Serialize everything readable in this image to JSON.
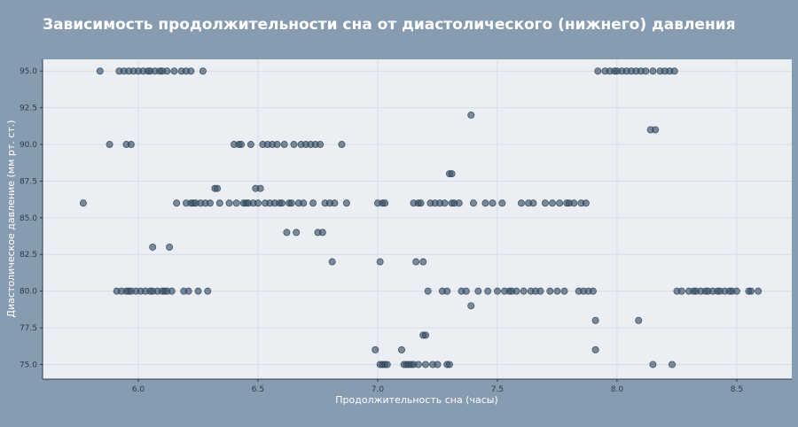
{
  "chart_data": {
    "type": "scatter",
    "title": "Зависимость продолжительности сна от диастолического (нижнего) давления",
    "xlabel": "Продолжительность сна (часы)",
    "ylabel": "Диастолическое давление (мм рт. ст.)",
    "xlim": [
      5.6,
      8.73
    ],
    "ylim": [
      74.0,
      95.8
    ],
    "xticks": [
      "6.0",
      "6.5",
      "7.0",
      "7.5",
      "8.0",
      "8.5"
    ],
    "yticks": [
      "75.0",
      "77.5",
      "80.0",
      "82.5",
      "85.0",
      "87.5",
      "90.0",
      "92.5",
      "95.0"
    ],
    "grid": true,
    "point_color": "#3b5169",
    "points": [
      [
        5.77,
        86
      ],
      [
        5.84,
        95
      ],
      [
        5.88,
        90
      ],
      [
        5.91,
        80
      ],
      [
        5.92,
        95
      ],
      [
        5.93,
        80
      ],
      [
        5.94,
        95
      ],
      [
        5.95,
        80
      ],
      [
        5.95,
        90
      ],
      [
        5.96,
        95
      ],
      [
        5.96,
        80
      ],
      [
        5.97,
        90
      ],
      [
        5.97,
        80
      ],
      [
        5.98,
        95
      ],
      [
        5.99,
        80
      ],
      [
        6.0,
        95
      ],
      [
        6.01,
        80
      ],
      [
        6.02,
        95
      ],
      [
        6.03,
        80
      ],
      [
        6.04,
        95
      ],
      [
        6.05,
        80
      ],
      [
        6.05,
        95
      ],
      [
        6.06,
        83
      ],
      [
        6.06,
        80
      ],
      [
        6.07,
        95
      ],
      [
        6.08,
        80
      ],
      [
        6.09,
        95
      ],
      [
        6.1,
        80
      ],
      [
        6.1,
        95
      ],
      [
        6.11,
        80
      ],
      [
        6.12,
        95
      ],
      [
        6.12,
        80
      ],
      [
        6.13,
        83
      ],
      [
        6.14,
        80
      ],
      [
        6.15,
        95
      ],
      [
        6.16,
        86
      ],
      [
        6.18,
        95
      ],
      [
        6.19,
        80
      ],
      [
        6.2,
        95
      ],
      [
        6.2,
        86
      ],
      [
        6.21,
        80
      ],
      [
        6.22,
        95
      ],
      [
        6.22,
        86
      ],
      [
        6.23,
        86
      ],
      [
        6.24,
        86
      ],
      [
        6.25,
        80
      ],
      [
        6.26,
        86
      ],
      [
        6.27,
        95
      ],
      [
        6.28,
        86
      ],
      [
        6.29,
        80
      ],
      [
        6.3,
        86
      ],
      [
        6.32,
        87
      ],
      [
        6.33,
        87
      ],
      [
        6.34,
        86
      ],
      [
        6.38,
        86
      ],
      [
        6.4,
        90
      ],
      [
        6.41,
        86
      ],
      [
        6.42,
        90
      ],
      [
        6.43,
        90
      ],
      [
        6.44,
        86
      ],
      [
        6.45,
        86
      ],
      [
        6.46,
        86
      ],
      [
        6.47,
        90
      ],
      [
        6.48,
        86
      ],
      [
        6.49,
        87
      ],
      [
        6.5,
        86
      ],
      [
        6.51,
        87
      ],
      [
        6.52,
        90
      ],
      [
        6.53,
        86
      ],
      [
        6.54,
        90
      ],
      [
        6.55,
        86
      ],
      [
        6.56,
        90
      ],
      [
        6.57,
        86
      ],
      [
        6.58,
        90
      ],
      [
        6.59,
        86
      ],
      [
        6.6,
        86
      ],
      [
        6.61,
        90
      ],
      [
        6.62,
        84
      ],
      [
        6.63,
        86
      ],
      [
        6.64,
        86
      ],
      [
        6.65,
        90
      ],
      [
        6.66,
        84
      ],
      [
        6.67,
        86
      ],
      [
        6.68,
        90
      ],
      [
        6.69,
        86
      ],
      [
        6.7,
        90
      ],
      [
        6.72,
        90
      ],
      [
        6.73,
        86
      ],
      [
        6.74,
        90
      ],
      [
        6.75,
        84
      ],
      [
        6.76,
        90
      ],
      [
        6.77,
        84
      ],
      [
        6.78,
        86
      ],
      [
        6.8,
        86
      ],
      [
        6.81,
        82
      ],
      [
        6.82,
        86
      ],
      [
        6.85,
        90
      ],
      [
        6.87,
        86
      ],
      [
        7.0,
        86
      ],
      [
        7.01,
        82
      ],
      [
        7.02,
        86
      ],
      [
        7.03,
        86
      ],
      [
        7.01,
        75
      ],
      [
        7.02,
        75
      ],
      [
        7.03,
        75
      ],
      [
        7.04,
        75
      ],
      [
        6.99,
        76
      ],
      [
        7.1,
        76
      ],
      [
        7.11,
        75
      ],
      [
        7.12,
        75
      ],
      [
        7.13,
        75
      ],
      [
        7.14,
        75
      ],
      [
        7.15,
        75
      ],
      [
        7.15,
        86
      ],
      [
        7.16,
        82
      ],
      [
        7.17,
        75
      ],
      [
        7.17,
        86
      ],
      [
        7.18,
        86
      ],
      [
        7.19,
        82
      ],
      [
        7.19,
        77
      ],
      [
        7.2,
        77
      ],
      [
        7.2,
        75
      ],
      [
        7.21,
        80
      ],
      [
        7.22,
        86
      ],
      [
        7.23,
        75
      ],
      [
        7.24,
        86
      ],
      [
        7.25,
        75
      ],
      [
        7.26,
        86
      ],
      [
        7.27,
        80
      ],
      [
        7.28,
        86
      ],
      [
        7.29,
        75
      ],
      [
        7.29,
        80
      ],
      [
        7.3,
        88
      ],
      [
        7.3,
        75
      ],
      [
        7.31,
        88
      ],
      [
        7.31,
        86
      ],
      [
        7.32,
        86
      ],
      [
        7.34,
        86
      ],
      [
        7.35,
        80
      ],
      [
        7.37,
        80
      ],
      [
        7.39,
        79
      ],
      [
        7.39,
        92
      ],
      [
        7.4,
        86
      ],
      [
        7.42,
        80
      ],
      [
        7.45,
        86
      ],
      [
        7.46,
        80
      ],
      [
        7.48,
        86
      ],
      [
        7.5,
        80
      ],
      [
        7.52,
        86
      ],
      [
        7.53,
        80
      ],
      [
        7.55,
        80
      ],
      [
        7.56,
        80
      ],
      [
        7.58,
        80
      ],
      [
        7.6,
        86
      ],
      [
        7.61,
        80
      ],
      [
        7.63,
        86
      ],
      [
        7.64,
        80
      ],
      [
        7.65,
        86
      ],
      [
        7.66,
        80
      ],
      [
        7.68,
        80
      ],
      [
        7.7,
        86
      ],
      [
        7.72,
        80
      ],
      [
        7.73,
        86
      ],
      [
        7.75,
        80
      ],
      [
        7.76,
        86
      ],
      [
        7.78,
        80
      ],
      [
        7.79,
        86
      ],
      [
        7.8,
        86
      ],
      [
        7.82,
        86
      ],
      [
        7.84,
        80
      ],
      [
        7.85,
        86
      ],
      [
        7.86,
        80
      ],
      [
        7.87,
        86
      ],
      [
        7.88,
        80
      ],
      [
        7.9,
        80
      ],
      [
        7.91,
        76
      ],
      [
        7.91,
        78
      ],
      [
        7.92,
        95
      ],
      [
        7.95,
        95
      ],
      [
        7.97,
        95
      ],
      [
        7.99,
        95
      ],
      [
        8.0,
        95
      ],
      [
        8.02,
        95
      ],
      [
        8.04,
        95
      ],
      [
        8.06,
        95
      ],
      [
        8.08,
        95
      ],
      [
        8.09,
        78
      ],
      [
        8.1,
        95
      ],
      [
        8.12,
        95
      ],
      [
        8.14,
        91
      ],
      [
        8.15,
        95
      ],
      [
        8.16,
        91
      ],
      [
        8.15,
        75
      ],
      [
        8.18,
        95
      ],
      [
        8.2,
        95
      ],
      [
        8.22,
        95
      ],
      [
        8.23,
        75
      ],
      [
        8.24,
        95
      ],
      [
        8.25,
        80
      ],
      [
        8.27,
        80
      ],
      [
        8.3,
        80
      ],
      [
        8.32,
        80
      ],
      [
        8.33,
        80
      ],
      [
        8.35,
        80
      ],
      [
        8.37,
        80
      ],
      [
        8.38,
        80
      ],
      [
        8.4,
        80
      ],
      [
        8.42,
        80
      ],
      [
        8.43,
        80
      ],
      [
        8.45,
        80
      ],
      [
        8.47,
        80
      ],
      [
        8.48,
        80
      ],
      [
        8.5,
        80
      ],
      [
        8.55,
        80
      ],
      [
        8.56,
        80
      ],
      [
        8.59,
        80
      ]
    ]
  }
}
